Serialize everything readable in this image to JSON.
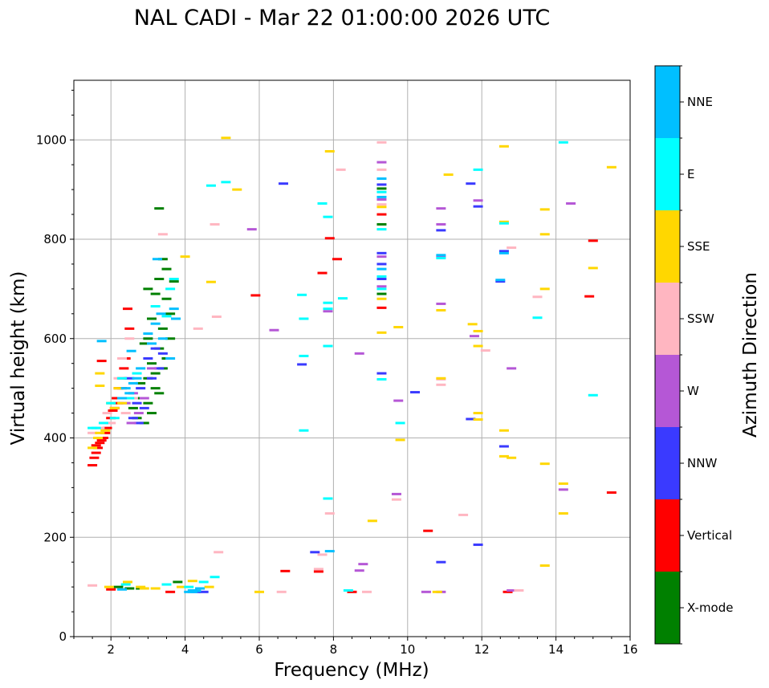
{
  "chart_data": {
    "type": "scatter",
    "title": "NAL CADI - Mar 22 01:00:00 2026 UTC",
    "xlabel": "Frequency (MHz)",
    "ylabel": "Virtual height (km)",
    "xlim": [
      1,
      16
    ],
    "ylim": [
      0,
      1120
    ],
    "xticks": [
      2,
      4,
      6,
      8,
      10,
      12,
      14,
      16
    ],
    "xtick_labels": [
      "2",
      "4",
      "6",
      "8",
      "10",
      "12",
      "14",
      "16"
    ],
    "yticks": [
      0,
      200,
      400,
      600,
      800,
      1000
    ],
    "ytick_labels": [
      "0",
      "200",
      "400",
      "600",
      "800",
      "1000"
    ],
    "grid": true,
    "colorbar": {
      "title": "Azimuth Direction",
      "categories": [
        {
          "label": "X-mode",
          "color": "#008000"
        },
        {
          "label": "Vertical",
          "color": "#ff0000"
        },
        {
          "label": "NNW",
          "color": "#3a3aff"
        },
        {
          "label": "W",
          "color": "#b557d6"
        },
        {
          "label": "SSW",
          "color": "#ffb6c1"
        },
        {
          "label": "SSE",
          "color": "#ffd700"
        },
        {
          "label": "E",
          "color": "#00ffff"
        },
        {
          "label": "NNE",
          "color": "#00bfff"
        }
      ]
    },
    "series": [
      {
        "name": "X-mode",
        "points": [
          [
            2.6,
            460
          ],
          [
            2.7,
            440
          ],
          [
            2.8,
            480
          ],
          [
            2.9,
            430
          ],
          [
            3.0,
            520
          ],
          [
            3.0,
            600
          ],
          [
            3.1,
            550
          ],
          [
            3.1,
            640
          ],
          [
            3.2,
            500
          ],
          [
            3.2,
            690
          ],
          [
            3.3,
            580
          ],
          [
            3.3,
            720
          ],
          [
            3.4,
            620
          ],
          [
            3.4,
            760
          ],
          [
            3.5,
            560
          ],
          [
            3.5,
            680
          ],
          [
            3.6,
            600
          ],
          [
            3.3,
            862
          ],
          [
            3.7,
            715
          ],
          [
            2.8,
            510
          ],
          [
            2.9,
            590
          ],
          [
            3.0,
            470
          ],
          [
            3.1,
            450
          ],
          [
            3.2,
            530
          ],
          [
            3.3,
            490
          ],
          [
            3.4,
            540
          ],
          [
            3.6,
            650
          ],
          [
            2.2,
            100
          ],
          [
            2.5,
            97
          ],
          [
            2.8,
            97
          ],
          [
            9.3,
            902
          ],
          [
            9.3,
            830
          ],
          [
            9.3,
            690
          ],
          [
            3.8,
            110
          ],
          [
            3.0,
            700
          ],
          [
            3.5,
            740
          ]
        ]
      },
      {
        "name": "Vertical",
        "points": [
          [
            1.5,
            345
          ],
          [
            1.55,
            360
          ],
          [
            1.6,
            370
          ],
          [
            1.65,
            380
          ],
          [
            1.7,
            390
          ],
          [
            1.75,
            395
          ],
          [
            1.8,
            400
          ],
          [
            1.85,
            410
          ],
          [
            1.9,
            420
          ],
          [
            2.0,
            440
          ],
          [
            2.1,
            460
          ],
          [
            2.15,
            480
          ],
          [
            2.2,
            500
          ],
          [
            2.3,
            520
          ],
          [
            2.35,
            540
          ],
          [
            2.4,
            560
          ],
          [
            2.5,
            620
          ],
          [
            1.75,
            555
          ],
          [
            2.45,
            660
          ],
          [
            2.0,
            95
          ],
          [
            3.6,
            90
          ],
          [
            5.9,
            687
          ],
          [
            6.7,
            132
          ],
          [
            7.6,
            131
          ],
          [
            7.7,
            732
          ],
          [
            7.9,
            802
          ],
          [
            8.1,
            760
          ],
          [
            8.5,
            90
          ],
          [
            9.3,
            850
          ],
          [
            9.3,
            662
          ],
          [
            10.55,
            213
          ],
          [
            12.7,
            90
          ],
          [
            14.9,
            685
          ],
          [
            15.0,
            797
          ],
          [
            15.5,
            290
          ],
          [
            2.05,
            455
          ],
          [
            1.6,
            385
          ],
          [
            2.3,
            500
          ],
          [
            2.2,
            470
          ]
        ]
      },
      {
        "name": "NNW",
        "points": [
          [
            2.6,
            440
          ],
          [
            2.7,
            470
          ],
          [
            2.75,
            430
          ],
          [
            2.8,
            500
          ],
          [
            2.9,
            460
          ],
          [
            3.0,
            560
          ],
          [
            3.1,
            520
          ],
          [
            3.2,
            580
          ],
          [
            3.3,
            540
          ],
          [
            3.4,
            570
          ],
          [
            2.5,
            520
          ],
          [
            6.65,
            912
          ],
          [
            7.15,
            548
          ],
          [
            7.5,
            170
          ],
          [
            9.3,
            750
          ],
          [
            9.3,
            720
          ],
          [
            9.3,
            530
          ],
          [
            10.2,
            492
          ],
          [
            10.9,
            818
          ],
          [
            10.9,
            150
          ],
          [
            11.7,
            912
          ],
          [
            11.7,
            438
          ],
          [
            11.9,
            866
          ],
          [
            11.9,
            185
          ],
          [
            12.5,
            715
          ],
          [
            12.6,
            776
          ],
          [
            12.6,
            383
          ],
          [
            4.3,
            90
          ],
          [
            4.5,
            90
          ],
          [
            9.3,
            910
          ],
          [
            9.3,
            772
          ]
        ]
      },
      {
        "name": "W",
        "points": [
          [
            2.4,
            470
          ],
          [
            2.6,
            490
          ],
          [
            2.75,
            450
          ],
          [
            2.9,
            480
          ],
          [
            3.1,
            540
          ],
          [
            2.55,
            430
          ],
          [
            5.8,
            820
          ],
          [
            6.4,
            617
          ],
          [
            7.85,
            655
          ],
          [
            8.7,
            570
          ],
          [
            8.7,
            133
          ],
          [
            9.3,
            955
          ],
          [
            9.3,
            765
          ],
          [
            9.3,
            705
          ],
          [
            9.75,
            475
          ],
          [
            9.7,
            287
          ],
          [
            10.5,
            90
          ],
          [
            10.9,
            862
          ],
          [
            10.9,
            830
          ],
          [
            10.9,
            765
          ],
          [
            10.9,
            670
          ],
          [
            10.9,
            90
          ],
          [
            11.8,
            605
          ],
          [
            11.9,
            878
          ],
          [
            12.8,
            540
          ],
          [
            12.8,
            93
          ],
          [
            14.2,
            296
          ],
          [
            14.4,
            872
          ],
          [
            8.8,
            146
          ],
          [
            9.3,
            880
          ]
        ]
      },
      {
        "name": "SSW",
        "points": [
          [
            1.5,
            410
          ],
          [
            1.7,
            420
          ],
          [
            1.9,
            450
          ],
          [
            2.0,
            430
          ],
          [
            2.3,
            560
          ],
          [
            2.4,
            450
          ],
          [
            2.5,
            600
          ],
          [
            2.2,
            520
          ],
          [
            3.4,
            810
          ],
          [
            4.35,
            620
          ],
          [
            4.8,
            830
          ],
          [
            4.85,
            644
          ],
          [
            4.9,
            170
          ],
          [
            6.6,
            90
          ],
          [
            7.6,
            136
          ],
          [
            7.7,
            165
          ],
          [
            7.9,
            248
          ],
          [
            8.2,
            940
          ],
          [
            8.9,
            90
          ],
          [
            9.3,
            995
          ],
          [
            9.3,
            940
          ],
          [
            9.3,
            870
          ],
          [
            9.7,
            276
          ],
          [
            10.9,
            518
          ],
          [
            10.9,
            507
          ],
          [
            11.5,
            245
          ],
          [
            12.1,
            576
          ],
          [
            12.8,
            783
          ],
          [
            13.0,
            93
          ],
          [
            13.5,
            684
          ],
          [
            1.5,
            103
          ],
          [
            2.6,
            480
          ]
        ]
      },
      {
        "name": "SSE",
        "points": [
          [
            1.5,
            380
          ],
          [
            1.65,
            400
          ],
          [
            1.7,
            410
          ],
          [
            1.7,
            505
          ],
          [
            1.7,
            530
          ],
          [
            1.85,
            415
          ],
          [
            2.0,
            470
          ],
          [
            2.1,
            460
          ],
          [
            2.2,
            500
          ],
          [
            2.3,
            470
          ],
          [
            1.95,
            100
          ],
          [
            2.45,
            110
          ],
          [
            2.9,
            97
          ],
          [
            3.2,
            97
          ],
          [
            3.9,
            100
          ],
          [
            4.2,
            112
          ],
          [
            4.7,
            714
          ],
          [
            4.0,
            765
          ],
          [
            5.1,
            1004
          ],
          [
            5.4,
            900
          ],
          [
            6.0,
            90
          ],
          [
            7.9,
            977
          ],
          [
            9.05,
            233
          ],
          [
            9.3,
            865
          ],
          [
            9.3,
            680
          ],
          [
            9.3,
            612
          ],
          [
            9.75,
            623
          ],
          [
            9.8,
            396
          ],
          [
            10.8,
            90
          ],
          [
            10.9,
            657
          ],
          [
            10.9,
            520
          ],
          [
            11.1,
            930
          ],
          [
            11.75,
            629
          ],
          [
            11.9,
            615
          ],
          [
            11.9,
            585
          ],
          [
            11.9,
            450
          ],
          [
            11.9,
            437
          ],
          [
            12.6,
            987
          ],
          [
            12.6,
            835
          ],
          [
            12.6,
            415
          ],
          [
            12.6,
            363
          ],
          [
            12.8,
            360
          ],
          [
            13.7,
            860
          ],
          [
            13.7,
            810
          ],
          [
            13.7,
            700
          ],
          [
            13.7,
            348
          ],
          [
            13.7,
            143
          ],
          [
            14.2,
            308
          ],
          [
            14.2,
            248
          ],
          [
            15.0,
            742
          ],
          [
            15.5,
            945
          ],
          [
            4.65,
            100
          ],
          [
            2.8,
            100
          ]
        ]
      },
      {
        "name": "E",
        "points": [
          [
            1.5,
            420
          ],
          [
            1.6,
            420
          ],
          [
            1.8,
            430
          ],
          [
            2.0,
            470
          ],
          [
            2.1,
            440
          ],
          [
            2.3,
            520
          ],
          [
            2.5,
            480
          ],
          [
            2.7,
            530
          ],
          [
            3.6,
            700
          ],
          [
            3.7,
            720
          ],
          [
            4.7,
            908
          ],
          [
            5.1,
            915
          ],
          [
            2.4,
            105
          ],
          [
            3.5,
            105
          ],
          [
            4.1,
            100
          ],
          [
            4.5,
            110
          ],
          [
            4.8,
            120
          ],
          [
            7.15,
            688
          ],
          [
            7.2,
            640
          ],
          [
            7.2,
            565
          ],
          [
            7.2,
            415
          ],
          [
            7.7,
            872
          ],
          [
            7.85,
            845
          ],
          [
            7.85,
            672
          ],
          [
            7.85,
            660
          ],
          [
            7.85,
            585
          ],
          [
            7.85,
            278
          ],
          [
            8.25,
            681
          ],
          [
            8.4,
            93
          ],
          [
            9.3,
            820
          ],
          [
            9.3,
            700
          ],
          [
            9.3,
            895
          ],
          [
            9.3,
            725
          ],
          [
            9.3,
            518
          ],
          [
            9.8,
            430
          ],
          [
            10.9,
            762
          ],
          [
            11.9,
            940
          ],
          [
            12.6,
            832
          ],
          [
            13.5,
            642
          ],
          [
            14.2,
            995
          ],
          [
            15.0,
            486
          ],
          [
            3.2,
            665
          ],
          [
            3.5,
            645
          ]
        ]
      },
      {
        "name": "NNE",
        "points": [
          [
            1.75,
            595
          ],
          [
            2.3,
            480
          ],
          [
            2.4,
            500
          ],
          [
            2.5,
            490
          ],
          [
            2.6,
            510
          ],
          [
            2.7,
            520
          ],
          [
            2.8,
            540
          ],
          [
            3.0,
            610
          ],
          [
            3.2,
            630
          ],
          [
            3.4,
            600
          ],
          [
            3.6,
            560
          ],
          [
            3.7,
            660
          ],
          [
            3.75,
            640
          ],
          [
            3.25,
            760
          ],
          [
            2.3,
            95
          ],
          [
            4.2,
            90
          ],
          [
            4.3,
            92
          ],
          [
            4.4,
            97
          ],
          [
            4.1,
            90
          ],
          [
            4.2,
            93
          ],
          [
            7.9,
            172
          ],
          [
            9.3,
            922
          ],
          [
            9.3,
            885
          ],
          [
            9.3,
            740
          ],
          [
            10.9,
            768
          ],
          [
            12.6,
            772
          ],
          [
            12.5,
            718
          ],
          [
            2.55,
            575
          ],
          [
            3.1,
            590
          ],
          [
            3.35,
            650
          ]
        ]
      }
    ]
  }
}
